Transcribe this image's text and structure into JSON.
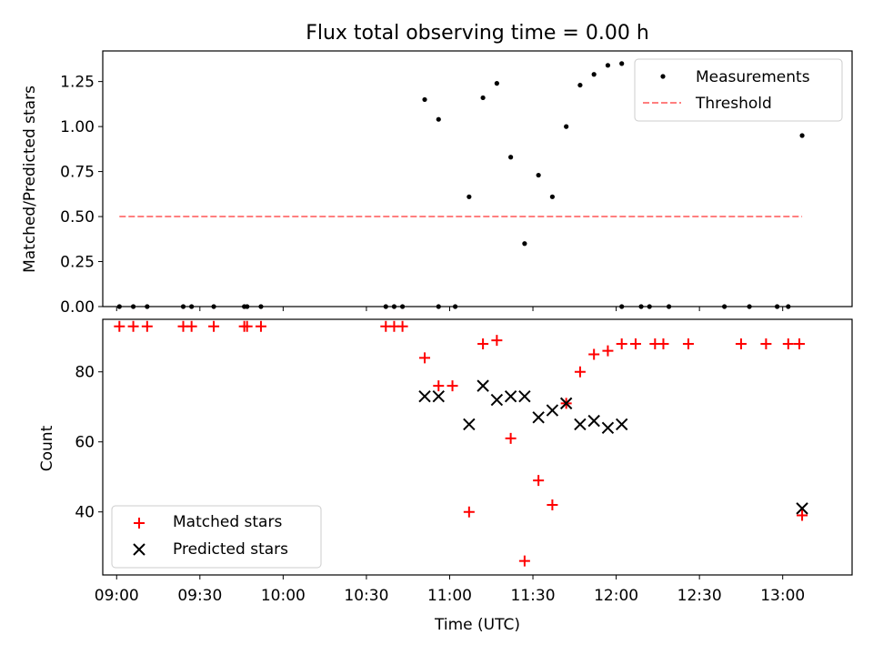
{
  "chart_data": [
    {
      "type": "scatter",
      "title": "Flux total observing time = 0.00 h",
      "ylabel": "Matched/Predicted stars",
      "xlim": [
        "08:55",
        "13:25"
      ],
      "ylim": [
        0,
        1.42
      ],
      "yticks": [
        "0.00",
        "0.25",
        "0.50",
        "0.75",
        "1.00",
        "1.25"
      ],
      "legend_position": "top-right",
      "series": [
        {
          "name": "Measurements",
          "color": "#000000",
          "marker": "dot",
          "points": [
            [
              "09:01",
              0
            ],
            [
              "09:06",
              0
            ],
            [
              "09:11",
              0
            ],
            [
              "09:24",
              0
            ],
            [
              "09:27",
              0
            ],
            [
              "09:35",
              0
            ],
            [
              "09:46",
              0
            ],
            [
              "09:47",
              0
            ],
            [
              "09:52",
              0
            ],
            [
              "10:37",
              0
            ],
            [
              "10:40",
              0
            ],
            [
              "10:43",
              0
            ],
            [
              "10:51",
              1.15
            ],
            [
              "10:56",
              1.04
            ],
            [
              "10:56",
              0.0
            ],
            [
              "11:02",
              0.0
            ],
            [
              "11:07",
              0.61
            ],
            [
              "11:12",
              1.16
            ],
            [
              "11:17",
              1.24
            ],
            [
              "11:22",
              0.83
            ],
            [
              "11:27",
              0.35
            ],
            [
              "11:32",
              0.73
            ],
            [
              "11:37",
              0.61
            ],
            [
              "11:42",
              1.0
            ],
            [
              "11:47",
              1.23
            ],
            [
              "11:52",
              1.29
            ],
            [
              "11:57",
              1.34
            ],
            [
              "12:02",
              1.35
            ],
            [
              "12:02",
              0
            ],
            [
              "12:09",
              0
            ],
            [
              "12:12",
              0
            ],
            [
              "12:19",
              0
            ],
            [
              "12:39",
              0
            ],
            [
              "12:48",
              0
            ],
            [
              "12:58",
              0
            ],
            [
              "13:02",
              0
            ],
            [
              "13:07",
              0.95
            ]
          ]
        },
        {
          "name": "Threshold",
          "color": "#ff7f7f",
          "style": "dashed",
          "points": [
            [
              "09:01",
              0.5
            ],
            [
              "13:07",
              0.5
            ]
          ]
        }
      ]
    },
    {
      "type": "scatter",
      "xlabel": "Time (UTC)",
      "ylabel": "Count",
      "xlim": [
        "08:55",
        "13:25"
      ],
      "ylim": [
        22,
        95
      ],
      "xticks": [
        "09:00",
        "09:30",
        "10:00",
        "10:30",
        "11:00",
        "11:30",
        "12:00",
        "12:30",
        "13:00"
      ],
      "yticks": [
        "40",
        "60",
        "80"
      ],
      "legend_position": "bottom-left",
      "series": [
        {
          "name": "Matched stars",
          "color": "#ff0000",
          "marker": "plus",
          "points": [
            [
              "09:01",
              93
            ],
            [
              "09:06",
              93
            ],
            [
              "09:11",
              93
            ],
            [
              "09:24",
              93
            ],
            [
              "09:27",
              93
            ],
            [
              "09:35",
              93
            ],
            [
              "09:46",
              93
            ],
            [
              "09:47",
              93
            ],
            [
              "09:52",
              93
            ],
            [
              "10:37",
              93
            ],
            [
              "10:40",
              93
            ],
            [
              "10:43",
              93
            ],
            [
              "10:51",
              84
            ],
            [
              "10:56",
              76
            ],
            [
              "11:01",
              76
            ],
            [
              "11:07",
              40
            ],
            [
              "11:12",
              88
            ],
            [
              "11:17",
              89
            ],
            [
              "11:22",
              61
            ],
            [
              "11:27",
              26
            ],
            [
              "11:32",
              49
            ],
            [
              "11:37",
              42
            ],
            [
              "11:42",
              71
            ],
            [
              "11:47",
              80
            ],
            [
              "11:52",
              85
            ],
            [
              "11:57",
              86
            ],
            [
              "12:02",
              88
            ],
            [
              "12:07",
              88
            ],
            [
              "12:14",
              88
            ],
            [
              "12:17",
              88
            ],
            [
              "12:26",
              88
            ],
            [
              "12:45",
              88
            ],
            [
              "12:54",
              88
            ],
            [
              "13:02",
              88
            ],
            [
              "13:06",
              88
            ],
            [
              "13:07",
              39
            ]
          ]
        },
        {
          "name": "Predicted stars",
          "color": "#000000",
          "marker": "x",
          "points": [
            [
              "10:51",
              73
            ],
            [
              "10:56",
              73
            ],
            [
              "11:07",
              65
            ],
            [
              "11:12",
              76
            ],
            [
              "11:17",
              72
            ],
            [
              "11:22",
              73
            ],
            [
              "11:27",
              73
            ],
            [
              "11:32",
              67
            ],
            [
              "11:37",
              69
            ],
            [
              "11:42",
              71
            ],
            [
              "11:47",
              65
            ],
            [
              "11:52",
              66
            ],
            [
              "11:57",
              64
            ],
            [
              "12:02",
              65
            ],
            [
              "13:07",
              41
            ]
          ]
        }
      ]
    }
  ]
}
